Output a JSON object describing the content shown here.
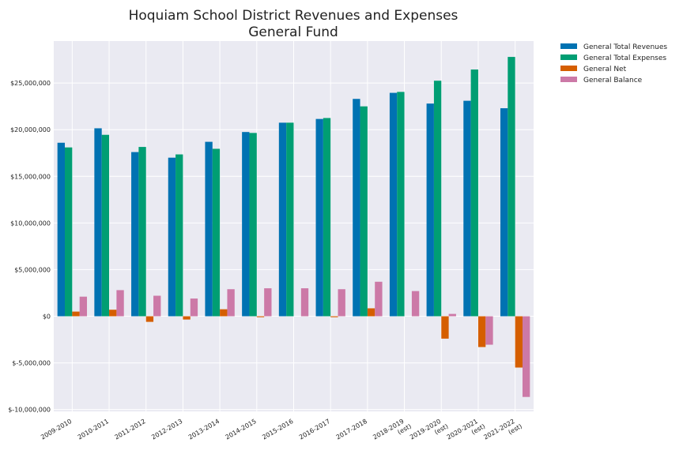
{
  "chart_data": {
    "type": "bar",
    "title_lines": [
      "Hoquiam School District Revenues and Expenses",
      "General Fund"
    ],
    "categories": [
      [
        "2009-2010"
      ],
      [
        "2010-2011"
      ],
      [
        "2011-2012"
      ],
      [
        "2012-2013"
      ],
      [
        "2013-2014"
      ],
      [
        "2014-2015"
      ],
      [
        "2015-2016"
      ],
      [
        "2016-2017"
      ],
      [
        "2017-2018"
      ],
      [
        "2018-2019",
        "(est)"
      ],
      [
        "2019-2020",
        "(est)"
      ],
      [
        "2020-2021",
        "(est)"
      ],
      [
        "2021-2022",
        "(est)"
      ]
    ],
    "series": [
      {
        "name": "General Total Revenues",
        "color": "#0072b2",
        "values": [
          18600000,
          20150000,
          17600000,
          17000000,
          18700000,
          19750000,
          20750000,
          21150000,
          23300000,
          23950000,
          22800000,
          23100000,
          22300000
        ]
      },
      {
        "name": "General Total Expenses",
        "color": "#009e73",
        "values": [
          18100000,
          19450000,
          18150000,
          17350000,
          17950000,
          19650000,
          20750000,
          21250000,
          22500000,
          24050000,
          25250000,
          26450000,
          27800000
        ]
      },
      {
        "name": "General Net",
        "color": "#d55e00",
        "values": [
          500000,
          700000,
          -600000,
          -350000,
          750000,
          -100000,
          0,
          -100000,
          850000,
          0,
          -2400000,
          -3300000,
          -5500000
        ]
      },
      {
        "name": "General Balance",
        "color": "#cc79a7",
        "values": [
          2100000,
          2800000,
          2200000,
          1900000,
          2900000,
          3000000,
          3000000,
          2900000,
          3700000,
          2700000,
          250000,
          -3050000,
          -8650000
        ]
      }
    ],
    "yticks": [
      {
        "value": -10000000,
        "label": "$-10,000,000"
      },
      {
        "value": -5000000,
        "label": "$-5,000,000"
      },
      {
        "value": 0,
        "label": "$0"
      },
      {
        "value": 5000000,
        "label": "$5,000,000"
      },
      {
        "value": 10000000,
        "label": "$10,000,000"
      },
      {
        "value": 15000000,
        "label": "$15,000,000"
      },
      {
        "value": 20000000,
        "label": "$20,000,000"
      },
      {
        "value": 25000000,
        "label": "$25,000,000"
      }
    ],
    "ylim": [
      -10200000,
      29500000
    ],
    "grid": true,
    "legend_position": "outside-top-right",
    "background_color": "#eaeaf2",
    "grid_color": "#ffffff"
  }
}
